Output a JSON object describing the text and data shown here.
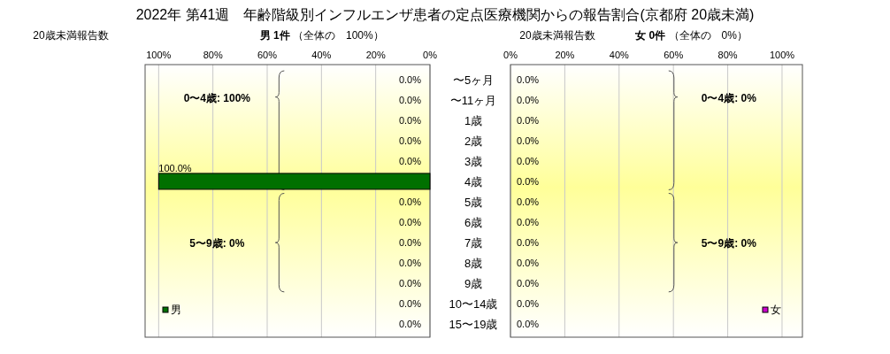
{
  "chart_data": [
    {
      "type": "bar",
      "orientation": "horizontal",
      "title": "2022年 第41週　年齢階級別インフルエンザ患者の定点医療機関からの報告割合(京都府 20歳未満)",
      "subtitle": "**男 1件** （全体の　100%）",
      "xlabel": "20歳未満報告数",
      "categories": [
        "〜5ヶ月",
        "〜11ヶ月",
        "1歳",
        "2歳",
        "3歳",
        "4歳",
        "5歳",
        "6歳",
        "7歳",
        "8歳",
        "9歳",
        "10〜14歳",
        "15〜19歳"
      ],
      "series": [
        {
          "name": "男",
          "color": "#007000",
          "values": [
            0,
            0,
            0,
            0,
            0,
            100,
            0,
            0,
            0,
            0,
            0,
            0,
            0
          ],
          "value_labels": [
            "0.0%",
            "0.0%",
            "0.0%",
            "0.0%",
            "0.0%",
            "100.0%",
            "0.0%",
            "0.0%",
            "0.0%",
            "0.0%",
            "0.0%",
            "0.0%",
            "0.0%"
          ]
        }
      ],
      "xlim": [
        105,
        0
      ],
      "xticks": [
        {
          "value": 100,
          "label": "100%"
        },
        {
          "value": 80,
          "label": "80%"
        },
        {
          "value": 60,
          "label": "60%"
        },
        {
          "value": 40,
          "label": "40%"
        },
        {
          "value": 20,
          "label": "20%"
        },
        {
          "value": 0,
          "label": "0%"
        }
      ],
      "grid": "x",
      "legend": "bottom left",
      "annotations": [
        "0〜4歳: 100%",
        "5〜9歳: 0%"
      ]
    },
    {
      "type": "bar",
      "orientation": "horizontal",
      "subtitle": "**女 0件** （全体の　0%）",
      "xlabel": "20歳未満報告数",
      "categories": [
        null,
        null,
        null,
        null,
        null,
        null,
        null,
        null,
        null,
        null,
        null,
        null,
        null
      ],
      "series": [
        {
          "name": "女",
          "color": "#cc00cc",
          "values": [
            0,
            0,
            0,
            0,
            0,
            0,
            0,
            0,
            0,
            0,
            0,
            0,
            0
          ],
          "value_labels": [
            "0.0%",
            "0.0%",
            "0.0%",
            "0.0%",
            "0.0%",
            "0.0%",
            "0.0%",
            "0.0%",
            "0.0%",
            "0.0%",
            "0.0%",
            "0.0%",
            "0.0%"
          ]
        }
      ],
      "xlim": [
        0,
        107.5
      ],
      "xticks": [
        {
          "value": 0,
          "label": "0%"
        },
        {
          "value": 20,
          "label": "20%"
        },
        {
          "value": 40,
          "label": "40%"
        },
        {
          "value": 60,
          "label": "60%"
        },
        {
          "value": 80,
          "label": "80%"
        },
        {
          "value": 100,
          "label": "100%"
        }
      ],
      "grid": "x",
      "legend": "bottom right",
      "tick_labels": "x",
      "annotations": [
        "0〜4歳: 0%",
        "5〜9歳: 0%"
      ]
    }
  ]
}
